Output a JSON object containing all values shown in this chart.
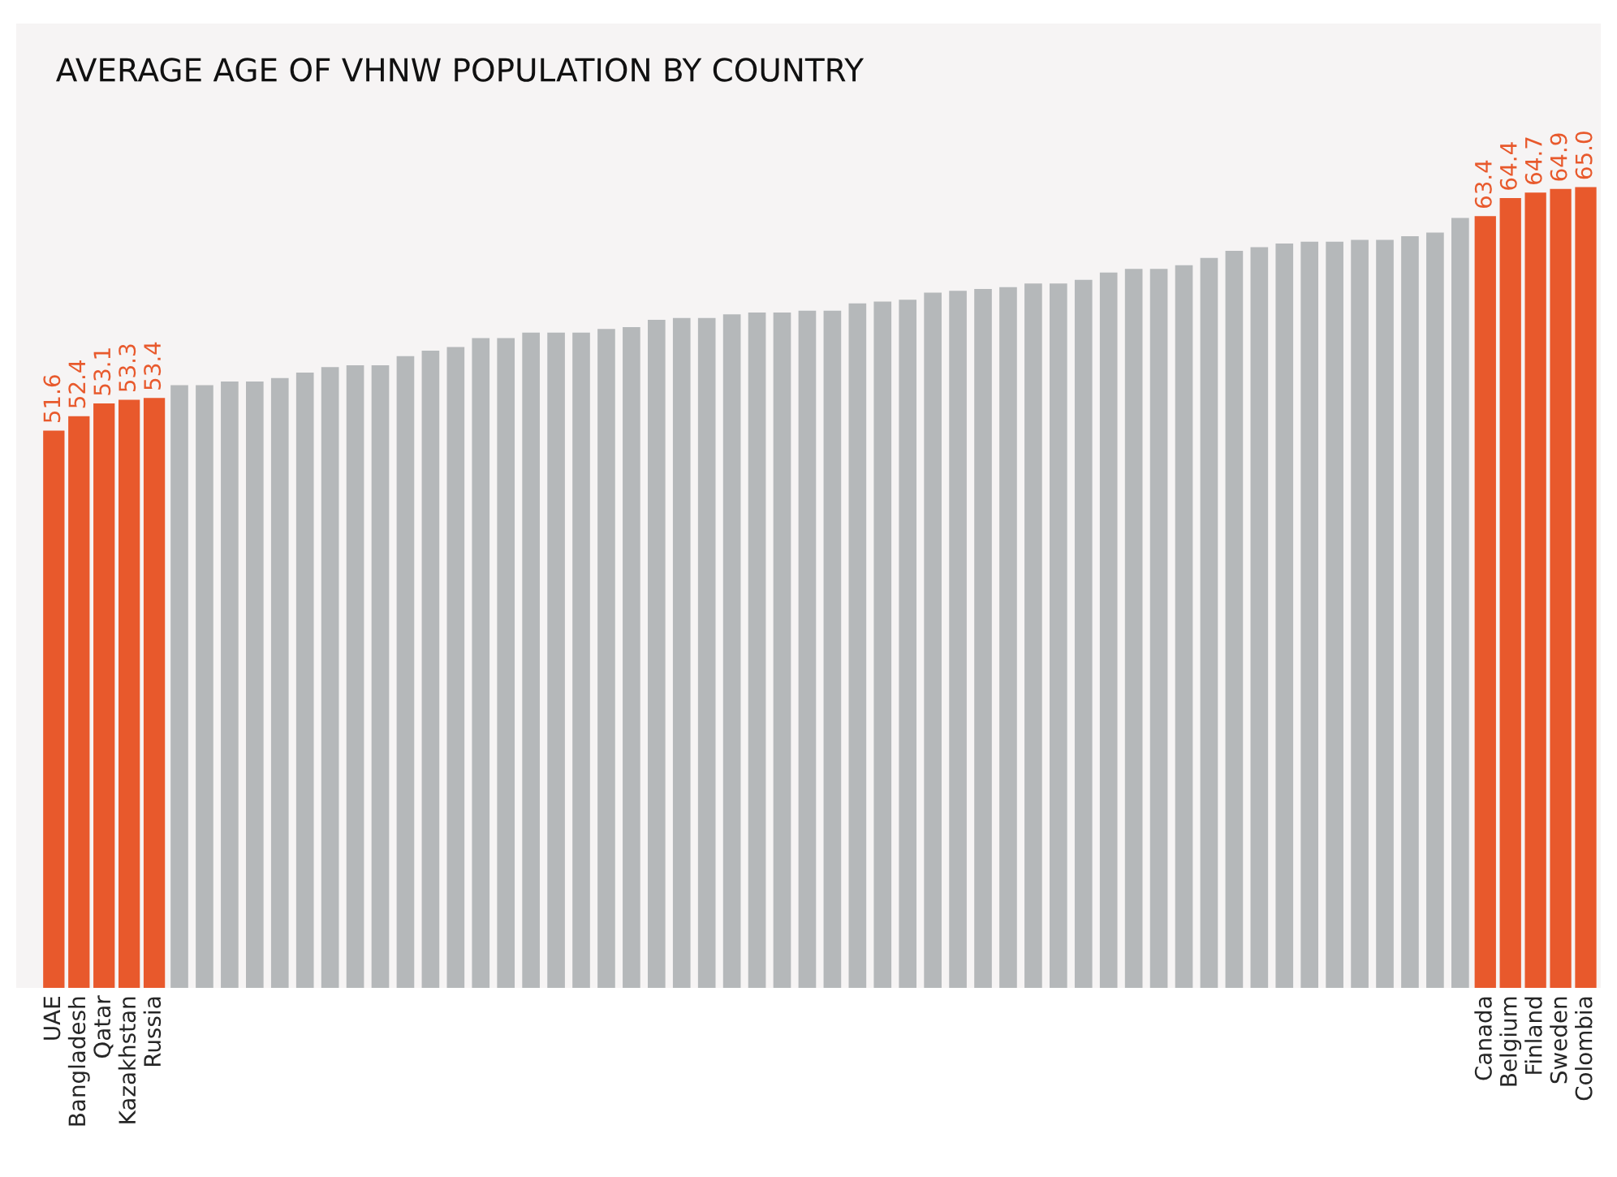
{
  "chart_data": {
    "type": "bar",
    "title": "AVERAGE AGE OF VHNW POPULATION BY COUNTRY",
    "categories": [
      "UAE",
      "Bangladesh",
      "Qatar",
      "Kazakhstan",
      "Russia",
      null,
      null,
      null,
      null,
      null,
      null,
      null,
      null,
      null,
      null,
      null,
      null,
      null,
      null,
      null,
      null,
      null,
      null,
      null,
      null,
      null,
      null,
      null,
      null,
      null,
      null,
      null,
      null,
      null,
      null,
      null,
      null,
      null,
      null,
      null,
      null,
      null,
      null,
      null,
      null,
      null,
      null,
      null,
      null,
      null,
      null,
      null,
      null,
      null,
      null,
      null,
      null,
      "Canada",
      "Belgium",
      "Finland",
      "Sweden",
      "Colombia"
    ],
    "values": [
      51.6,
      52.4,
      53.1,
      53.3,
      53.4,
      54.1,
      54.1,
      54.3,
      54.3,
      54.5,
      54.8,
      55.1,
      55.2,
      55.2,
      55.7,
      56.0,
      56.2,
      56.7,
      56.7,
      57.0,
      57.0,
      57.0,
      57.2,
      57.3,
      57.7,
      57.8,
      57.8,
      58.0,
      58.1,
      58.1,
      58.2,
      58.2,
      58.6,
      58.7,
      58.8,
      59.2,
      59.3,
      59.4,
      59.5,
      59.7,
      59.7,
      59.9,
      60.3,
      60.5,
      60.5,
      60.7,
      61.1,
      61.5,
      61.7,
      61.9,
      62.0,
      62.0,
      62.1,
      62.1,
      62.3,
      62.5,
      63.3,
      63.4,
      64.4,
      64.7,
      64.9,
      65.0
    ],
    "colors": [
      "#e8592c",
      "#e8592c",
      "#e8592c",
      "#e8592c",
      "#e8592c",
      "#b5b8ba",
      "#b5b8ba",
      "#b5b8ba",
      "#b5b8ba",
      "#b5b8ba",
      "#b5b8ba",
      "#b5b8ba",
      "#b5b8ba",
      "#b5b8ba",
      "#b5b8ba",
      "#b5b8ba",
      "#b5b8ba",
      "#b5b8ba",
      "#b5b8ba",
      "#b5b8ba",
      "#b5b8ba",
      "#b5b8ba",
      "#b5b8ba",
      "#b5b8ba",
      "#b5b8ba",
      "#b5b8ba",
      "#b5b8ba",
      "#b5b8ba",
      "#b5b8ba",
      "#b5b8ba",
      "#b5b8ba",
      "#b5b8ba",
      "#b5b8ba",
      "#b5b8ba",
      "#b5b8ba",
      "#b5b8ba",
      "#b5b8ba",
      "#b5b8ba",
      "#b5b8ba",
      "#b5b8ba",
      "#b5b8ba",
      "#b5b8ba",
      "#b5b8ba",
      "#b5b8ba",
      "#b5b8ba",
      "#b5b8ba",
      "#b5b8ba",
      "#b5b8ba",
      "#b5b8ba",
      "#b5b8ba",
      "#b5b8ba",
      "#b5b8ba",
      "#b5b8ba",
      "#b5b8ba",
      "#b5b8ba",
      "#b5b8ba",
      "#b5b8ba",
      "#e8592c",
      "#e8592c",
      "#e8592c",
      "#e8592c",
      "#e8592c"
    ],
    "value_labels": [
      "51.6",
      "52.4",
      "53.1",
      "53.3",
      "53.4",
      null,
      null,
      null,
      null,
      null,
      null,
      null,
      null,
      null,
      null,
      null,
      null,
      null,
      null,
      null,
      null,
      null,
      null,
      null,
      null,
      null,
      null,
      null,
      null,
      null,
      null,
      null,
      null,
      null,
      null,
      null,
      null,
      null,
      null,
      null,
      null,
      null,
      null,
      null,
      null,
      null,
      null,
      null,
      null,
      null,
      null,
      null,
      null,
      null,
      null,
      null,
      null,
      "63.4",
      "64.4",
      "64.7",
      "64.9",
      "65.0"
    ],
    "ylim": [
      20.9,
      74
    ],
    "tick_labels": "x"
  }
}
